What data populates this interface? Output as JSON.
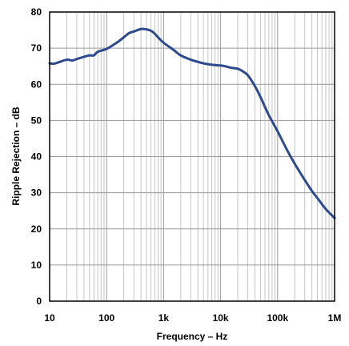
{
  "chart_data": {
    "type": "line",
    "title": "",
    "xlabel": "Frequency – Hz",
    "ylabel": "Ripple Rejection – dB",
    "xscale": "log",
    "xlim": [
      10,
      1000000
    ],
    "ylim": [
      0,
      80
    ],
    "grid": true,
    "x_ticks": [
      {
        "value": 10,
        "label": "10"
      },
      {
        "value": 100,
        "label": "100"
      },
      {
        "value": 1000,
        "label": "1k"
      },
      {
        "value": 10000,
        "label": "10k"
      },
      {
        "value": 100000,
        "label": "100k"
      },
      {
        "value": 1000000,
        "label": "1M"
      }
    ],
    "y_ticks": [
      0,
      10,
      20,
      30,
      40,
      50,
      60,
      70,
      80
    ],
    "series": [
      {
        "color": "#2e4a8c",
        "points": [
          [
            10,
            65.8
          ],
          [
            12,
            65.7
          ],
          [
            15,
            66.2
          ],
          [
            20,
            66.8
          ],
          [
            25,
            66.6
          ],
          [
            30,
            67.0
          ],
          [
            40,
            67.6
          ],
          [
            50,
            68.0
          ],
          [
            60,
            68.0
          ],
          [
            70,
            69.0
          ],
          [
            100,
            69.8
          ],
          [
            150,
            71.5
          ],
          [
            200,
            73.0
          ],
          [
            250,
            74.2
          ],
          [
            300,
            74.6
          ],
          [
            400,
            75.3
          ],
          [
            500,
            75.2
          ],
          [
            600,
            74.8
          ],
          [
            700,
            74.0
          ],
          [
            800,
            73.0
          ],
          [
            1000,
            71.5
          ],
          [
            1500,
            69.5
          ],
          [
            2000,
            68.0
          ],
          [
            3000,
            66.8
          ],
          [
            4000,
            66.2
          ],
          [
            5000,
            65.8
          ],
          [
            7000,
            65.4
          ],
          [
            10000,
            65.2
          ],
          [
            12000,
            65.0
          ],
          [
            15000,
            64.6
          ],
          [
            20000,
            64.3
          ],
          [
            25000,
            63.5
          ],
          [
            30000,
            62.5
          ],
          [
            40000,
            59.5
          ],
          [
            50000,
            56.5
          ],
          [
            70000,
            51.5
          ],
          [
            100000,
            47.0
          ],
          [
            150000,
            41.5
          ],
          [
            200000,
            38.0
          ],
          [
            300000,
            33.5
          ],
          [
            400000,
            30.5
          ],
          [
            500000,
            28.5
          ],
          [
            700000,
            25.5
          ],
          [
            1000000,
            23.0
          ]
        ]
      }
    ]
  }
}
